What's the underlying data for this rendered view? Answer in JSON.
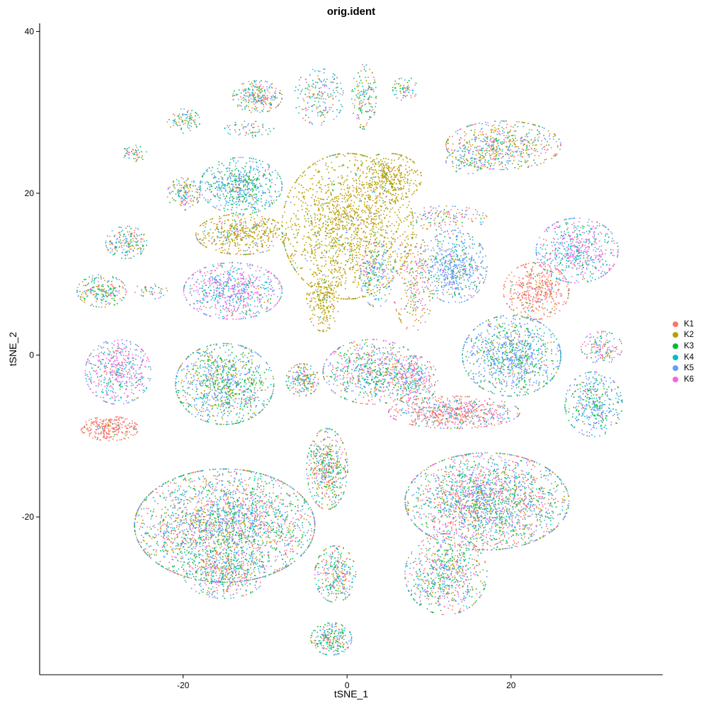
{
  "chart_data": {
    "type": "scatter",
    "title": "orig.ident",
    "xlabel": "tSNE_1",
    "ylabel": "tSNE_2",
    "xlim": [
      -37.5,
      38.5
    ],
    "ylim": [
      -39.5,
      41
    ],
    "x_ticks": [
      -20,
      0,
      20
    ],
    "y_ticks": [
      -20,
      0,
      20,
      40
    ],
    "x_tick_labels": [
      "-20",
      "0",
      "20"
    ],
    "y_tick_labels": [
      "-20",
      "0",
      "20",
      "40"
    ],
    "grid": false,
    "legend_position": "right",
    "series": [
      {
        "name": "K1",
        "color": "#F8766D"
      },
      {
        "name": "K2",
        "color": "#B79F00"
      },
      {
        "name": "K3",
        "color": "#00BA38"
      },
      {
        "name": "K4",
        "color": "#00BFC4"
      },
      {
        "name": "K5",
        "color": "#619CFF"
      },
      {
        "name": "K6",
        "color": "#F564E3"
      }
    ],
    "clusters": [
      {
        "x": 0,
        "y": 16,
        "rx": 8,
        "ry": 9,
        "w": [
          0.02,
          0.92,
          0.01,
          0.02,
          0.02,
          0.01
        ],
        "n": 1600
      },
      {
        "x": -3,
        "y": 7,
        "rx": 2,
        "ry": 4,
        "w": [
          0.02,
          0.9,
          0.02,
          0.03,
          0.02,
          0.01
        ],
        "n": 250
      },
      {
        "x": 5,
        "y": 22,
        "rx": 4,
        "ry": 3,
        "w": [
          0.03,
          0.9,
          0.02,
          0.02,
          0.02,
          0.01
        ],
        "n": 350
      },
      {
        "x": -13,
        "y": 15,
        "rx": 5.5,
        "ry": 2.5,
        "w": [
          0.08,
          0.75,
          0.03,
          0.03,
          0.06,
          0.05
        ],
        "n": 500
      },
      {
        "x": -14,
        "y": 8,
        "rx": 6,
        "ry": 3.5,
        "w": [
          0.05,
          0.03,
          0.05,
          0.25,
          0.22,
          0.4
        ],
        "n": 700
      },
      {
        "x": -13,
        "y": 21,
        "rx": 5,
        "ry": 3.5,
        "w": [
          0.05,
          0.03,
          0.35,
          0.2,
          0.35,
          0.02
        ],
        "n": 600
      },
      {
        "x": -28,
        "y": -2,
        "rx": 4,
        "ry": 4,
        "w": [
          0.05,
          0.03,
          0.07,
          0.3,
          0.1,
          0.45
        ],
        "n": 500
      },
      {
        "x": -29,
        "y": -9,
        "rx": 3.5,
        "ry": 1.5,
        "w": [
          0.9,
          0.03,
          0.02,
          0.02,
          0.02,
          0.01
        ],
        "n": 280
      },
      {
        "x": -15,
        "y": -3.5,
        "rx": 6,
        "ry": 5,
        "w": [
          0.05,
          0.2,
          0.3,
          0.08,
          0.35,
          0.02
        ],
        "n": 1000
      },
      {
        "x": -15,
        "y": -21,
        "rx": 11,
        "ry": 7,
        "w": [
          0.2,
          0.16,
          0.2,
          0.14,
          0.22,
          0.08
        ],
        "n": 2600
      },
      {
        "x": -15,
        "y": -27,
        "rx": 5,
        "ry": 3,
        "w": [
          0.2,
          0.16,
          0.2,
          0.14,
          0.22,
          0.08
        ],
        "n": 400
      },
      {
        "x": -2.5,
        "y": -14,
        "rx": 2.5,
        "ry": 5,
        "w": [
          0.3,
          0.2,
          0.2,
          0.12,
          0.12,
          0.06
        ],
        "n": 500
      },
      {
        "x": -1.5,
        "y": -27,
        "rx": 2.5,
        "ry": 3.5,
        "w": [
          0.25,
          0.15,
          0.25,
          0.15,
          0.12,
          0.08
        ],
        "n": 300
      },
      {
        "x": -2,
        "y": -35,
        "rx": 2.5,
        "ry": 2,
        "w": [
          0.2,
          0.15,
          0.25,
          0.2,
          0.15,
          0.05
        ],
        "n": 250
      },
      {
        "x": 17,
        "y": -18,
        "rx": 10,
        "ry": 6,
        "w": [
          0.22,
          0.12,
          0.2,
          0.12,
          0.22,
          0.12
        ],
        "n": 2200
      },
      {
        "x": 12,
        "y": -27,
        "rx": 5,
        "ry": 5,
        "w": [
          0.22,
          0.12,
          0.2,
          0.12,
          0.22,
          0.12
        ],
        "n": 700
      },
      {
        "x": 13,
        "y": -7,
        "rx": 8,
        "ry": 2,
        "w": [
          0.55,
          0.05,
          0.06,
          0.05,
          0.2,
          0.09
        ],
        "n": 700
      },
      {
        "x": 20,
        "y": 0,
        "rx": 6,
        "ry": 5,
        "w": [
          0.03,
          0.08,
          0.28,
          0.03,
          0.55,
          0.03
        ],
        "n": 1000
      },
      {
        "x": 23,
        "y": 8,
        "rx": 4,
        "ry": 3.5,
        "w": [
          0.82,
          0.1,
          0.02,
          0.02,
          0.02,
          0.02
        ],
        "n": 450
      },
      {
        "x": 13,
        "y": 11,
        "rx": 4,
        "ry": 4.5,
        "w": [
          0.04,
          0.05,
          0.18,
          0.03,
          0.65,
          0.05
        ],
        "n": 600
      },
      {
        "x": 28,
        "y": 13,
        "rx": 5,
        "ry": 4,
        "w": [
          0.05,
          0.03,
          0.07,
          0.35,
          0.15,
          0.35
        ],
        "n": 600
      },
      {
        "x": 30,
        "y": -6,
        "rx": 3.5,
        "ry": 4,
        "w": [
          0.03,
          0.03,
          0.35,
          0.1,
          0.45,
          0.04
        ],
        "n": 400
      },
      {
        "x": 31,
        "y": 1,
        "rx": 2.5,
        "ry": 2,
        "w": [
          0.3,
          0.05,
          0.1,
          0.2,
          0.2,
          0.15
        ],
        "n": 150
      },
      {
        "x": 19,
        "y": 26,
        "rx": 7,
        "ry": 3,
        "w": [
          0.25,
          0.25,
          0.15,
          0.1,
          0.2,
          0.05
        ],
        "n": 600
      },
      {
        "x": 8,
        "y": 9,
        "rx": 2.5,
        "ry": 6,
        "w": [
          0.4,
          0.3,
          0.1,
          0.05,
          0.1,
          0.05
        ],
        "n": 250
      },
      {
        "x": 3.5,
        "y": 10,
        "rx": 2,
        "ry": 4,
        "w": [
          0.05,
          0.05,
          0.1,
          0.3,
          0.3,
          0.2
        ],
        "n": 200
      },
      {
        "x": 12,
        "y": 17,
        "rx": 5,
        "ry": 1.5,
        "w": [
          0.3,
          0.2,
          0.1,
          0.1,
          0.2,
          0.1
        ],
        "n": 150
      },
      {
        "x": 3,
        "y": -2,
        "rx": 6,
        "ry": 4,
        "w": [
          0.2,
          0.1,
          0.2,
          0.15,
          0.2,
          0.15
        ],
        "n": 700
      },
      {
        "x": 8,
        "y": -3,
        "rx": 3,
        "ry": 3,
        "w": [
          0.3,
          0.05,
          0.1,
          0.2,
          0.2,
          0.15
        ],
        "n": 300
      },
      {
        "x": -5.5,
        "y": -3,
        "rx": 2,
        "ry": 2,
        "w": [
          0.25,
          0.2,
          0.15,
          0.15,
          0.15,
          0.1
        ],
        "n": 200
      },
      {
        "x": -11,
        "y": 32,
        "rx": 3,
        "ry": 2,
        "w": [
          0.3,
          0.15,
          0.15,
          0.15,
          0.2,
          0.05
        ],
        "n": 250
      },
      {
        "x": -20,
        "y": 20,
        "rx": 2,
        "ry": 2,
        "w": [
          0.2,
          0.2,
          0.2,
          0.15,
          0.2,
          0.05
        ],
        "n": 150
      },
      {
        "x": -30,
        "y": 8,
        "rx": 3,
        "ry": 2,
        "w": [
          0.2,
          0.2,
          0.2,
          0.2,
          0.15,
          0.05
        ],
        "n": 220
      },
      {
        "x": -27,
        "y": 14,
        "rx": 2.5,
        "ry": 2,
        "w": [
          0.2,
          0.2,
          0.2,
          0.2,
          0.15,
          0.05
        ],
        "n": 180
      },
      {
        "x": -3.5,
        "y": 32,
        "rx": 3,
        "ry": 3.5,
        "w": [
          0.2,
          0.15,
          0.15,
          0.2,
          0.2,
          0.1
        ],
        "n": 200
      },
      {
        "x": 2,
        "y": 32,
        "rx": 1.5,
        "ry": 4,
        "w": [
          0.2,
          0.2,
          0.2,
          0.2,
          0.15,
          0.05
        ],
        "n": 150
      },
      {
        "x": -20,
        "y": 29,
        "rx": 2,
        "ry": 1.5,
        "w": [
          0.2,
          0.2,
          0.2,
          0.2,
          0.15,
          0.05
        ],
        "n": 90
      },
      {
        "x": 7,
        "y": 33,
        "rx": 1.5,
        "ry": 1.5,
        "w": [
          0.2,
          0.2,
          0.2,
          0.2,
          0.15,
          0.05
        ],
        "n": 70
      },
      {
        "x": -26,
        "y": 25,
        "rx": 1.5,
        "ry": 1,
        "w": [
          0.2,
          0.2,
          0.2,
          0.2,
          0.15,
          0.05
        ],
        "n": 50
      },
      {
        "x": -12,
        "y": 28,
        "rx": 3,
        "ry": 1,
        "w": [
          0.2,
          0.2,
          0.2,
          0.2,
          0.15,
          0.05
        ],
        "n": 60
      },
      {
        "x": -24,
        "y": 8,
        "rx": 2,
        "ry": 1,
        "w": [
          0.2,
          0.2,
          0.2,
          0.2,
          0.15,
          0.05
        ],
        "n": 40
      },
      {
        "x": 15,
        "y": 24,
        "rx": 3,
        "ry": 1.5,
        "w": [
          0.2,
          0.2,
          0.2,
          0.2,
          0.15,
          0.05
        ],
        "n": 100
      }
    ]
  }
}
